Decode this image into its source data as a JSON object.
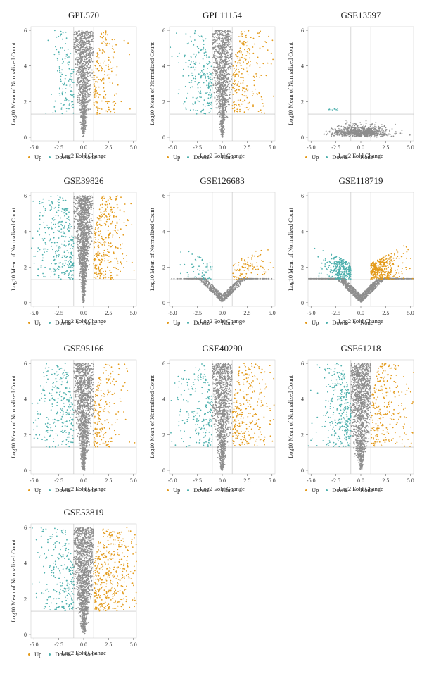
{
  "colors": {
    "up": "#e39a1a",
    "down": "#4db0ad",
    "none": "#8e8e8e"
  },
  "legend": {
    "up": "Up",
    "down": "Down",
    "none": "None"
  },
  "chart_data": [
    {
      "type": "scatter",
      "title": "GPL570",
      "xlabel": "Log2 Fold Change",
      "ylabel": "Log10 Mean of Normalized Count",
      "xticks": [
        "-5.0",
        "-2.5",
        "0.0",
        "2.5",
        "5.0"
      ],
      "yticks": [
        "0",
        "2",
        "4",
        "6"
      ],
      "xlim": [
        -5.3,
        5.3
      ],
      "ylim": [
        -0.2,
        6.2
      ],
      "fc_cut": 1,
      "p_cut": 1.3,
      "shape": {
        "spread": 1.55,
        "n_none": 1100,
        "n_up": 170,
        "n_down": 130,
        "upmax": 3.2,
        "downmax": 2.8
      }
    },
    {
      "type": "scatter",
      "title": "GPL11154",
      "xlabel": "Log2 Fold Change",
      "ylabel": "Log10 Mean of Normalized Count",
      "xticks": [
        "-5.0",
        "-2.5",
        "0.0",
        "2.5",
        "5.0"
      ],
      "yticks": [
        "0",
        "2",
        "4",
        "6"
      ],
      "xlim": [
        -5.3,
        5.3
      ],
      "ylim": [
        -0.2,
        6.2
      ],
      "fc_cut": 1,
      "p_cut": 1.3,
      "shape": {
        "spread": 1.8,
        "n_none": 1100,
        "n_up": 230,
        "n_down": 210,
        "upmax": 3.8,
        "downmax": 3.6
      }
    },
    {
      "type": "scatter",
      "title": "GSE13597",
      "xlabel": "Log2 Fold Change",
      "ylabel": "Log10 Mean of Normalized Count",
      "xticks": [
        "-5.0",
        "-2.5",
        "0.0",
        "2.5",
        "5.0"
      ],
      "yticks": [
        "0",
        "2",
        "4",
        "6"
      ],
      "xlim": [
        -5.3,
        5.3
      ],
      "ylim": [
        -0.2,
        6.2
      ],
      "fc_cut": 1,
      "p_cut": 1.3,
      "shape": {
        "flat": true,
        "spread": 4.5,
        "n_none": 800,
        "n_up": 0,
        "n_down": 10,
        "upmax": 4.8,
        "downmax": 3.3
      }
    },
    {
      "type": "scatter",
      "title": "GSE39826",
      "xlabel": "Log2 Fold Change",
      "ylabel": "Log10 Mean of Normalized Count",
      "xticks": [
        "-5.0",
        "-2.5",
        "0.0",
        "2.5",
        "5.0"
      ],
      "yticks": [
        "0",
        "2",
        "4",
        "6"
      ],
      "xlim": [
        -5.3,
        5.3
      ],
      "ylim": [
        -0.2,
        6.2
      ],
      "fc_cut": 1,
      "p_cut": 1.3,
      "shape": {
        "spread": 1.3,
        "n_none": 1300,
        "n_up": 320,
        "n_down": 320,
        "upmax": 4.0,
        "downmax": 4.2
      }
    },
    {
      "type": "scatter",
      "title": "GSE126683",
      "xlabel": "Log2 Fold Change",
      "ylabel": "Log10 Mean of Normalized Count",
      "xticks": [
        "-5.0",
        "-2.5",
        "0.0",
        "2.5",
        "5.0"
      ],
      "yticks": [
        "0",
        "2",
        "4",
        "6"
      ],
      "xlim": [
        -5.3,
        5.3
      ],
      "ylim": [
        -0.2,
        6.2
      ],
      "fc_cut": 1,
      "p_cut": 1.3,
      "shape": {
        "vlow": true,
        "spread": 3.8,
        "n_none": 700,
        "n_up": 100,
        "n_down": 60,
        "upmax": 4.8,
        "downmax": 3.8
      }
    },
    {
      "type": "scatter",
      "title": "GSE118719",
      "xlabel": "Log2 Fold Change",
      "ylabel": "Log10 Mean of Normalized Count",
      "xticks": [
        "-5.0",
        "-2.5",
        "0.0",
        "2.5",
        "5.0"
      ],
      "yticks": [
        "0",
        "2",
        "4",
        "6"
      ],
      "xlim": [
        -5.3,
        5.3
      ],
      "ylim": [
        -0.2,
        6.2
      ],
      "fc_cut": 1,
      "p_cut": 1.3,
      "shape": {
        "vlow": true,
        "spread": 4.8,
        "n_none": 1300,
        "n_up": 380,
        "n_down": 300,
        "upmax": 3.5,
        "downmax": 3.2
      }
    },
    {
      "type": "scatter",
      "title": "GSE95166",
      "xlabel": "Log2 Fold Change",
      "ylabel": "Log10 Mean of Normalized Count",
      "xticks": [
        "-5.0",
        "-2.5",
        "0.0",
        "2.5",
        "5.0"
      ],
      "yticks": [
        "0",
        "2",
        "4",
        "6"
      ],
      "xlim": [
        -5.3,
        5.3
      ],
      "ylim": [
        -0.2,
        6.2
      ],
      "fc_cut": 1,
      "p_cut": 1.3,
      "shape": {
        "spread": 1.8,
        "n_none": 1200,
        "n_up": 180,
        "n_down": 260,
        "upmax": 3.4,
        "downmax": 4.4
      }
    },
    {
      "type": "scatter",
      "title": "GSE40290",
      "xlabel": "Log2 Fold Change",
      "ylabel": "Log10 Mean of Normalized Count",
      "xticks": [
        "-5.0",
        "-2.5",
        "0.0",
        "2.5",
        "5.0"
      ],
      "yticks": [
        "0",
        "2",
        "4",
        "6"
      ],
      "xlim": [
        -5.3,
        5.3
      ],
      "ylim": [
        -0.2,
        6.2
      ],
      "fc_cut": 1,
      "p_cut": 1.3,
      "shape": {
        "spread": 2.0,
        "n_none": 1100,
        "n_up": 280,
        "n_down": 200,
        "upmax": 4.5,
        "downmax": 3.8
      }
    },
    {
      "type": "scatter",
      "title": "GSE61218",
      "xlabel": "Log2 Fold Change",
      "ylabel": "Log10 Mean of Normalized Count",
      "xticks": [
        "-5.0",
        "-2.5",
        "0.0",
        "2.5",
        "5.0"
      ],
      "yticks": [
        "0",
        "2",
        "4",
        "6"
      ],
      "xlim": [
        -5.3,
        5.3
      ],
      "ylim": [
        -0.2,
        6.2
      ],
      "fc_cut": 1,
      "p_cut": 1.3,
      "shape": {
        "spread": 2.4,
        "n_none": 1200,
        "n_up": 260,
        "n_down": 300,
        "upmax": 4.5,
        "downmax": 3.5
      }
    },
    {
      "type": "scatter",
      "title": "GSE53819",
      "xlabel": "Log2 Fold Change",
      "ylabel": "Log10 Mean of Normalized Count",
      "xticks": [
        "-5.0",
        "-2.5",
        "0.0",
        "2.5",
        "5.0"
      ],
      "yticks": [
        "0",
        "2",
        "4",
        "6"
      ],
      "xlim": [
        -5.3,
        5.3
      ],
      "ylim": [
        -0.2,
        6.2
      ],
      "fc_cut": 1,
      "p_cut": 1.3,
      "shape": {
        "spread": 2.0,
        "n_none": 1300,
        "n_up": 420,
        "n_down": 230,
        "upmax": 4.8,
        "downmax": 4.3
      }
    }
  ]
}
